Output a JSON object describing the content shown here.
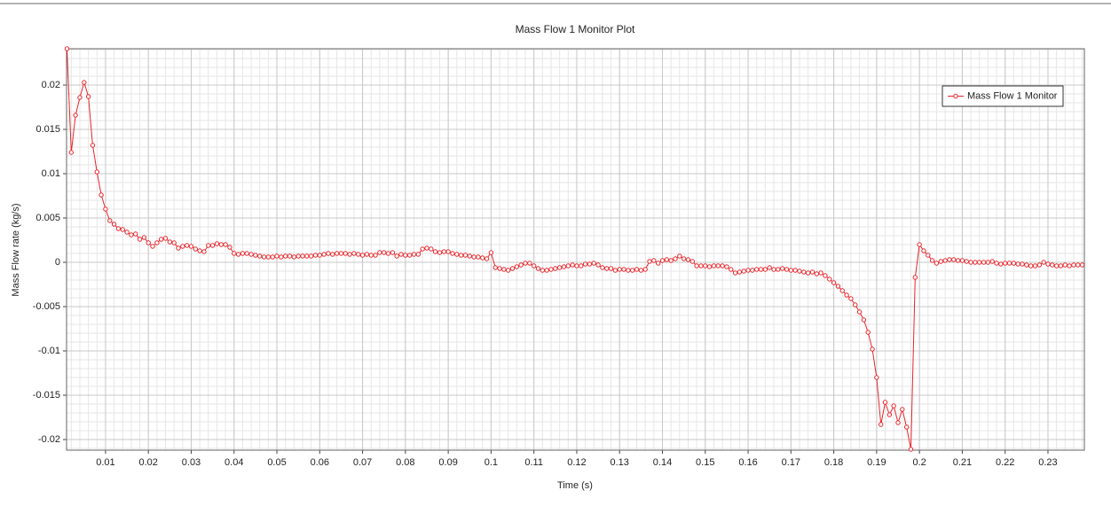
{
  "chart_data": {
    "type": "line",
    "title": "Mass Flow 1 Monitor Plot",
    "x_label": "Time (s)",
    "y_label": "Mass Flow rate (kg/s)",
    "legend": "upper right",
    "grid": true,
    "xlim": [
      0.0009,
      0.2385
    ],
    "ylim": [
      -0.0212,
      0.0241
    ],
    "xticks": [
      0.01,
      0.02,
      0.03,
      0.04,
      0.05,
      0.06,
      0.07,
      0.08,
      0.09,
      0.1,
      0.11,
      0.12,
      0.13,
      0.14,
      0.15,
      0.16,
      0.17,
      0.18,
      0.19,
      0.2,
      0.21,
      0.22,
      0.23
    ],
    "yticks": [
      -0.02,
      -0.015,
      -0.01,
      -0.005,
      0,
      0.005,
      0.01,
      0.015,
      0.02
    ],
    "x": [
      0.001,
      0.002,
      0.003,
      0.004,
      0.005,
      0.006,
      0.007,
      0.008,
      0.009,
      0.01,
      0.011,
      0.012,
      0.013,
      0.014,
      0.015,
      0.016,
      0.017,
      0.018,
      0.019,
      0.02,
      0.021,
      0.022,
      0.023,
      0.024,
      0.025,
      0.026,
      0.027,
      0.028,
      0.029,
      0.03,
      0.031,
      0.032,
      0.033,
      0.034,
      0.035,
      0.036,
      0.037,
      0.038,
      0.039,
      0.04,
      0.041,
      0.042,
      0.043,
      0.044,
      0.045,
      0.046,
      0.047,
      0.048,
      0.049,
      0.05,
      0.051,
      0.052,
      0.053,
      0.054,
      0.055,
      0.056,
      0.057,
      0.058,
      0.059,
      0.06,
      0.061,
      0.062,
      0.063,
      0.064,
      0.065,
      0.066,
      0.067,
      0.068,
      0.069,
      0.07,
      0.071,
      0.072,
      0.073,
      0.074,
      0.075,
      0.076,
      0.077,
      0.078,
      0.079,
      0.08,
      0.081,
      0.082,
      0.083,
      0.084,
      0.085,
      0.086,
      0.087,
      0.088,
      0.089,
      0.09,
      0.091,
      0.092,
      0.093,
      0.094,
      0.095,
      0.096,
      0.097,
      0.098,
      0.099,
      0.1,
      0.101,
      0.102,
      0.103,
      0.104,
      0.105,
      0.106,
      0.107,
      0.108,
      0.109,
      0.11,
      0.111,
      0.112,
      0.113,
      0.114,
      0.115,
      0.116,
      0.117,
      0.118,
      0.119,
      0.12,
      0.121,
      0.122,
      0.123,
      0.124,
      0.125,
      0.126,
      0.127,
      0.128,
      0.129,
      0.13,
      0.131,
      0.132,
      0.133,
      0.134,
      0.135,
      0.136,
      0.137,
      0.138,
      0.139,
      0.14,
      0.141,
      0.142,
      0.143,
      0.144,
      0.145,
      0.146,
      0.147,
      0.148,
      0.149,
      0.15,
      0.151,
      0.152,
      0.153,
      0.154,
      0.155,
      0.156,
      0.157,
      0.158,
      0.159,
      0.16,
      0.161,
      0.162,
      0.163,
      0.164,
      0.165,
      0.166,
      0.167,
      0.168,
      0.169,
      0.17,
      0.171,
      0.172,
      0.173,
      0.174,
      0.175,
      0.176,
      0.177,
      0.178,
      0.179,
      0.18,
      0.181,
      0.182,
      0.183,
      0.184,
      0.185,
      0.186,
      0.187,
      0.188,
      0.189,
      0.19,
      0.191,
      0.192,
      0.193,
      0.194,
      0.195,
      0.196,
      0.197,
      0.198,
      0.199,
      0.2,
      0.201,
      0.202,
      0.203,
      0.204,
      0.205,
      0.206,
      0.207,
      0.208,
      0.209,
      0.21,
      0.211,
      0.212,
      0.213,
      0.214,
      0.215,
      0.216,
      0.217,
      0.218,
      0.219,
      0.22,
      0.221,
      0.222,
      0.223,
      0.224,
      0.225,
      0.226,
      0.227,
      0.228,
      0.229,
      0.23,
      0.231,
      0.232,
      0.233,
      0.234,
      0.235,
      0.236,
      0.237,
      0.238
    ],
    "series": [
      {
        "name": "Mass Flow 1 Monitor",
        "color": "#e8252b",
        "values": [
          0.0241,
          0.0124,
          0.0166,
          0.0186,
          0.0203,
          0.0187,
          0.0132,
          0.0102,
          0.0076,
          0.006,
          0.0047,
          0.0043,
          0.0038,
          0.0037,
          0.0034,
          0.0031,
          0.0032,
          0.0026,
          0.0028,
          0.0022,
          0.0018,
          0.0022,
          0.0026,
          0.0027,
          0.0023,
          0.0022,
          0.0016,
          0.0018,
          0.0019,
          0.0018,
          0.0015,
          0.0013,
          0.0012,
          0.0019,
          0.0019,
          0.0021,
          0.002,
          0.002,
          0.0017,
          0.001,
          0.0009,
          0.001,
          0.001,
          0.0009,
          0.0008,
          0.0007,
          0.0006,
          0.0006,
          0.0006,
          0.0007,
          0.0006,
          0.0007,
          0.0007,
          0.0006,
          0.0007,
          0.0007,
          0.0007,
          0.0007,
          0.0008,
          0.0008,
          0.0009,
          0.001,
          0.0009,
          0.001,
          0.001,
          0.001,
          0.0009,
          0.001,
          0.0009,
          0.0008,
          0.0009,
          0.0008,
          0.0008,
          0.0011,
          0.0011,
          0.001,
          0.0011,
          0.0007,
          0.0009,
          0.0008,
          0.0008,
          0.0009,
          0.0009,
          0.0015,
          0.0016,
          0.0015,
          0.0012,
          0.0011,
          0.0012,
          0.0012,
          0.001,
          0.0009,
          0.0008,
          0.0008,
          0.0007,
          0.0006,
          0.0006,
          0.0005,
          0.0004,
          0.0011,
          -0.0006,
          -0.0007,
          -0.0008,
          -0.0009,
          -0.0007,
          -0.0005,
          -0.0003,
          -0.0001,
          -0.0001,
          -0.0004,
          -0.0007,
          -0.0009,
          -0.0009,
          -0.0008,
          -0.0007,
          -0.0006,
          -0.0005,
          -0.0004,
          -0.0003,
          -0.0004,
          -0.0004,
          -0.0002,
          -0.0002,
          -0.0001,
          -0.0003,
          -0.0006,
          -0.0007,
          -0.0007,
          -0.0009,
          -0.0008,
          -0.0008,
          -0.0009,
          -0.0009,
          -0.0008,
          -0.0009,
          -0.0008,
          0.0001,
          0.0002,
          -0.0001,
          0.0002,
          0.0003,
          0.0002,
          0.0004,
          0.0007,
          0.0004,
          0.0003,
          0.0001,
          -0.0004,
          -0.0004,
          -0.0004,
          -0.0005,
          -0.0004,
          -0.0004,
          -0.0004,
          -0.0005,
          -0.0008,
          -0.0012,
          -0.0011,
          -0.001,
          -0.0009,
          -0.0009,
          -0.0008,
          -0.0008,
          -0.0008,
          -0.0006,
          -0.0008,
          -0.0008,
          -0.0007,
          -0.0008,
          -0.0009,
          -0.0009,
          -0.001,
          -0.0011,
          -0.0012,
          -0.0011,
          -0.0013,
          -0.0012,
          -0.0015,
          -0.0019,
          -0.0023,
          -0.0027,
          -0.0032,
          -0.0037,
          -0.0041,
          -0.0048,
          -0.0056,
          -0.0065,
          -0.0079,
          -0.0098,
          -0.013,
          -0.0183,
          -0.0158,
          -0.0172,
          -0.0162,
          -0.0181,
          -0.0166,
          -0.0186,
          -0.0211,
          -0.0017,
          0.002,
          0.0013,
          0.0008,
          0.0002,
          -0.0001,
          0.0001,
          0.0002,
          0.0003,
          0.0003,
          0.0002,
          0.0002,
          0.0001,
          0,
          0,
          0,
          0,
          0,
          0.0001,
          -0.0001,
          -0.0002,
          -0.0001,
          -0.0001,
          -0.0001,
          -0.0002,
          -0.0002,
          -0.0003,
          -0.0004,
          -0.0004,
          -0.0003,
          0,
          -0.0002,
          -0.0003,
          -0.0004,
          -0.0004,
          -0.0003,
          -0.0004,
          -0.0003,
          -0.0003,
          -0.0003
        ]
      }
    ]
  }
}
